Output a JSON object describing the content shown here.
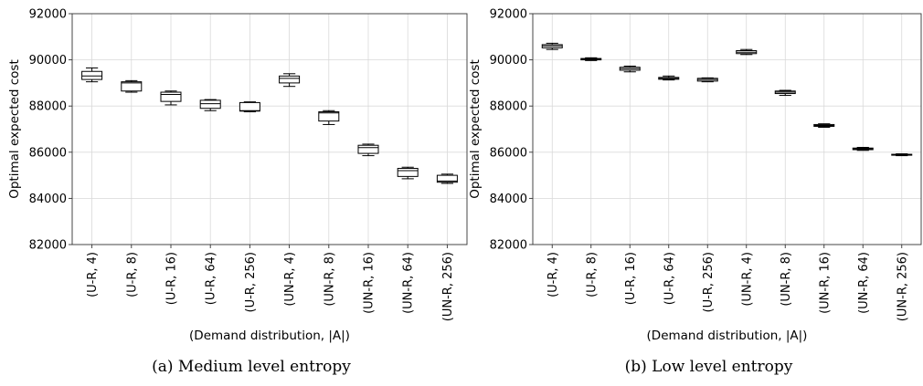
{
  "chart_data": [
    {
      "type": "box",
      "ylabel": "Optimal expected cost",
      "xlabel": "(Demand distribution, |A|)",
      "caption": "(a) Medium level entropy",
      "ylim": [
        82000,
        92000
      ],
      "yticks": [
        "82000",
        "84000",
        "86000",
        "88000",
        "90000",
        "92000"
      ],
      "grid": true,
      "categories": [
        "(U-R, 4)",
        "(U-R, 8)",
        "(U-R, 16)",
        "(U-R, 64)",
        "(U-R, 256)",
        "(UN-R, 4)",
        "(UN-R, 8)",
        "(UN-R, 16)",
        "(UN-R, 64)",
        "(UN-R, 256)"
      ],
      "boxes": [
        {
          "min": 89050,
          "q1": 89150,
          "median": 89300,
          "q3": 89500,
          "max": 89650
        },
        {
          "min": 88600,
          "q1": 88650,
          "median": 89000,
          "q3": 89050,
          "max": 89100
        },
        {
          "min": 88050,
          "q1": 88200,
          "median": 88500,
          "q3": 88600,
          "max": 88650
        },
        {
          "min": 87800,
          "q1": 87900,
          "median": 88100,
          "q3": 88250,
          "max": 88280
        },
        {
          "min": 87750,
          "q1": 87780,
          "median": 87800,
          "q3": 88150,
          "max": 88180
        },
        {
          "min": 88850,
          "q1": 89000,
          "median": 89200,
          "q3": 89300,
          "max": 89400
        },
        {
          "min": 87200,
          "q1": 87350,
          "median": 87700,
          "q3": 87750,
          "max": 87800
        },
        {
          "min": 85850,
          "q1": 85950,
          "median": 86200,
          "q3": 86300,
          "max": 86350
        },
        {
          "min": 84850,
          "q1": 84950,
          "median": 85200,
          "q3": 85300,
          "max": 85350
        },
        {
          "min": 84650,
          "q1": 84700,
          "median": 84750,
          "q3": 85000,
          "max": 85050
        }
      ]
    },
    {
      "type": "box",
      "ylabel": "Optimal expected cost",
      "xlabel": "(Demand distribution, |A|)",
      "caption": "(b) Low level entropy",
      "ylim": [
        82000,
        92000
      ],
      "yticks": [
        "82000",
        "84000",
        "86000",
        "88000",
        "90000",
        "92000"
      ],
      "grid": true,
      "categories": [
        "(U-R, 4)",
        "(U-R, 8)",
        "(U-R, 16)",
        "(U-R, 64)",
        "(U-R, 256)",
        "(UN-R, 4)",
        "(UN-R, 8)",
        "(UN-R, 16)",
        "(UN-R, 64)",
        "(UN-R, 256)"
      ],
      "boxes": [
        {
          "min": 90450,
          "q1": 90520,
          "median": 90600,
          "q3": 90660,
          "max": 90720
        },
        {
          "min": 89970,
          "q1": 90000,
          "median": 90030,
          "q3": 90060,
          "max": 90090
        },
        {
          "min": 89480,
          "q1": 89550,
          "median": 89620,
          "q3": 89680,
          "max": 89730
        },
        {
          "min": 89130,
          "q1": 89160,
          "median": 89200,
          "q3": 89240,
          "max": 89300
        },
        {
          "min": 89050,
          "q1": 89080,
          "median": 89150,
          "q3": 89200,
          "max": 89220
        },
        {
          "min": 90230,
          "q1": 90270,
          "median": 90330,
          "q3": 90400,
          "max": 90450
        },
        {
          "min": 88460,
          "q1": 88540,
          "median": 88600,
          "q3": 88650,
          "max": 88680
        },
        {
          "min": 87080,
          "q1": 87120,
          "median": 87160,
          "q3": 87200,
          "max": 87230
        },
        {
          "min": 86080,
          "q1": 86110,
          "median": 86150,
          "q3": 86180,
          "max": 86210
        },
        {
          "min": 85850,
          "q1": 85870,
          "median": 85890,
          "q3": 85910,
          "max": 85930
        }
      ]
    }
  ]
}
